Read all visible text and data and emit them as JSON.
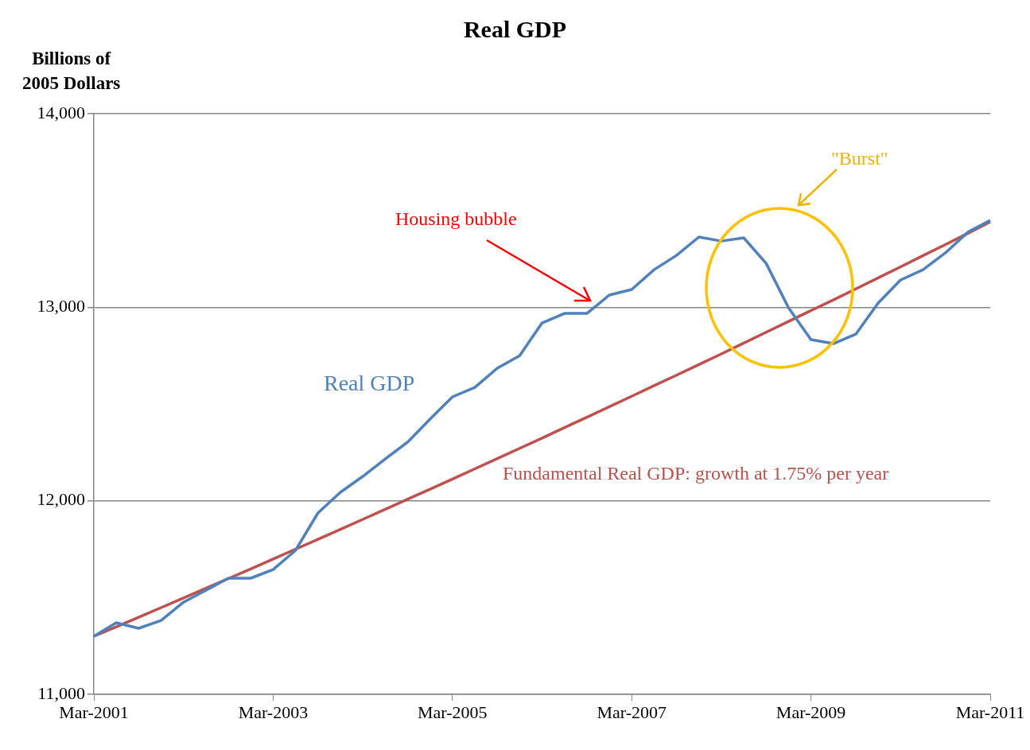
{
  "chart_data": {
    "type": "line",
    "title": "Real GDP",
    "ylabel": "Billions of\n2005 Dollars",
    "categories": [
      "Mar-2001",
      null,
      null,
      null,
      null,
      null,
      null,
      null,
      "Mar-2003",
      null,
      null,
      null,
      null,
      null,
      null,
      null,
      "Mar-2005",
      null,
      null,
      null,
      null,
      null,
      null,
      null,
      "Mar-2007",
      null,
      null,
      null,
      null,
      null,
      null,
      null,
      "Mar-2009",
      null,
      null,
      null,
      null,
      null,
      null,
      null,
      "Mar-2011"
    ],
    "series": [
      {
        "name": "Real GDP",
        "color": "#4f81bd",
        "values": [
          11300,
          11370,
          11341,
          11382,
          11476,
          11538,
          11600,
          11600,
          11645,
          11744,
          11937,
          12044,
          12126,
          12216,
          12303,
          12422,
          12537,
          12586,
          12685,
          12750,
          12919,
          12968,
          12968,
          13063,
          13092,
          13194,
          13268,
          13363,
          13342,
          13359,
          13227,
          12997,
          12833,
          12812,
          12861,
          13022,
          13141,
          13194,
          13281,
          13388,
          13449
        ]
      },
      {
        "name": "Fundamental Real GDP: growth at 1.75% per year",
        "color": "#c0504d",
        "values": [
          11300,
          11349,
          11398,
          11448,
          11498,
          11548,
          11598,
          11648,
          11699,
          11750,
          11801,
          11852,
          11904,
          11956,
          12008,
          12060,
          12112,
          12165,
          12218,
          12271,
          12324,
          12378,
          12432,
          12486,
          12540,
          12595,
          12649,
          12704,
          12759,
          12815,
          12871,
          12927,
          12983,
          13038,
          13095,
          13152,
          13209,
          13267,
          13324,
          13382,
          13441
        ]
      }
    ],
    "ylim": [
      11000,
      14000
    ],
    "yticks": [
      {
        "value": 11000,
        "label": "11,000"
      },
      {
        "value": 12000,
        "label": "12,000"
      },
      {
        "value": 13000,
        "label": "13,000"
      },
      {
        "value": 14000,
        "label": "14,000"
      }
    ],
    "grid": "y",
    "legend": false,
    "marker": "none",
    "line_style": "solid",
    "annotations": [
      "Housing bubble",
      "\"Burst\""
    ]
  }
}
